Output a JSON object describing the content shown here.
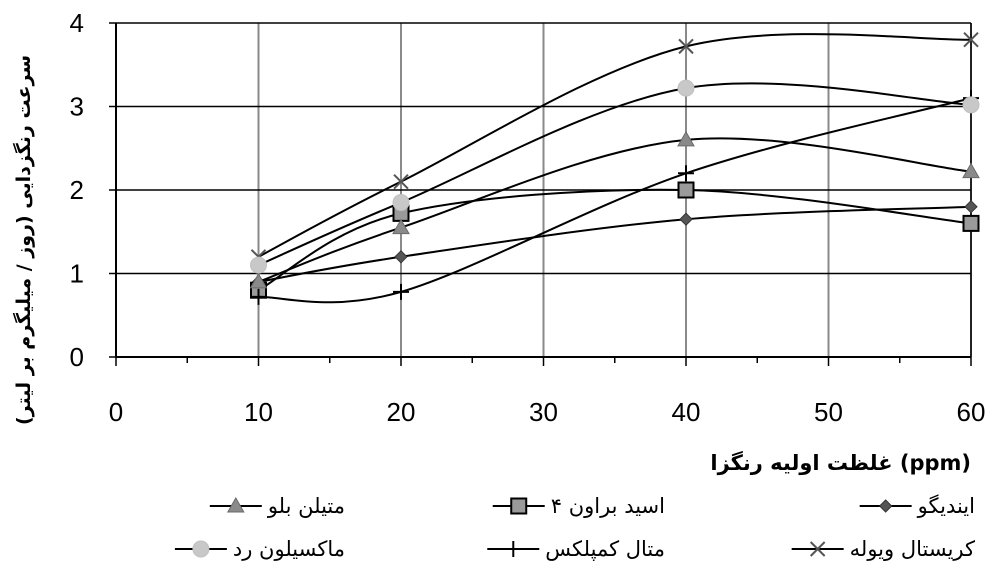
{
  "chart_data": {
    "type": "line",
    "xlabel": "غلظت اولیه رنگزا (ppm)",
    "ylabel": "سرعت رنگزدایی (روز / میلیگرم بر لیتر)",
    "xlim": [
      0,
      60
    ],
    "ylim": [
      0,
      4
    ],
    "x_ticks": [
      "0",
      "10",
      "20",
      "30",
      "40",
      "50",
      "60"
    ],
    "y_ticks": [
      "0",
      "1",
      "2",
      "3",
      "4"
    ],
    "grid": true,
    "legend_position": "bottom",
    "series": [
      {
        "name": "ایندیگو",
        "marker": "diamond",
        "x": [
          10,
          20,
          40,
          60
        ],
        "y": [
          0.9,
          1.2,
          1.65,
          1.8
        ]
      },
      {
        "name": "اسید براون ۴",
        "marker": "square",
        "x": [
          10,
          20,
          40,
          60
        ],
        "y": [
          0.8,
          1.72,
          2.0,
          1.6
        ]
      },
      {
        "name": "متیلن بلو",
        "marker": "triangle",
        "x": [
          10,
          20,
          40,
          60
        ],
        "y": [
          0.9,
          1.55,
          2.6,
          2.22
        ]
      },
      {
        "name": "کریستال ویوله",
        "marker": "cross",
        "x": [
          10,
          20,
          40,
          60
        ],
        "y": [
          1.2,
          2.1,
          3.72,
          3.8
        ]
      },
      {
        "name": "متال کمپلکس",
        "marker": "plus",
        "x": [
          10,
          20,
          40,
          60
        ],
        "y": [
          0.72,
          0.78,
          2.2,
          3.1
        ]
      },
      {
        "name": "ماکسیلون رد",
        "marker": "circle",
        "x": [
          10,
          20,
          40,
          60
        ],
        "y": [
          1.1,
          1.85,
          3.22,
          3.02
        ]
      }
    ]
  }
}
